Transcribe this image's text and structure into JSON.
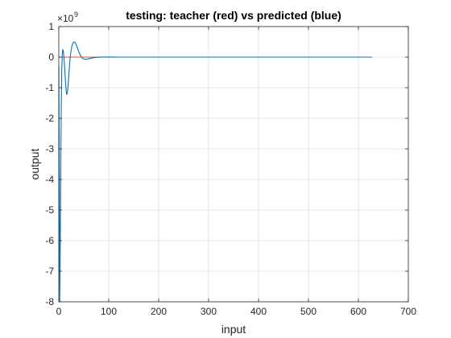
{
  "chart_data": {
    "type": "line",
    "title": "testing: teacher (red) vs predicted (blue)",
    "xlabel": "input",
    "ylabel": "output",
    "y_multiplier_text": "×10",
    "y_multiplier_exponent": "9",
    "xlim": [
      0,
      700
    ],
    "ylim": [
      -8,
      1
    ],
    "y_scale": 1000000000,
    "x_ticks": [
      0,
      100,
      200,
      300,
      400,
      500,
      600,
      700
    ],
    "y_ticks": [
      -8,
      -7,
      -6,
      -5,
      -4,
      -3,
      -2,
      -1,
      0,
      1
    ],
    "grid": true,
    "legend": "none",
    "series": [
      {
        "color": "#d95319",
        "x": [
          0,
          100,
          200,
          300,
          400,
          500,
          627
        ],
        "y": [
          0,
          0,
          0,
          0,
          0,
          0,
          0
        ]
      },
      {
        "color": "#0072bd",
        "x": [
          0,
          1,
          2,
          3,
          4,
          5,
          6,
          7,
          8,
          9,
          10,
          11,
          12,
          13,
          14,
          15,
          16,
          17,
          18,
          19,
          20,
          21,
          22,
          23,
          24,
          26,
          28,
          30,
          32,
          34,
          36,
          38,
          40,
          42,
          44,
          46,
          48,
          50,
          52,
          55,
          58,
          62,
          66,
          70,
          75,
          80,
          90,
          100,
          110,
          120,
          130,
          150,
          200,
          300,
          400,
          500,
          627
        ],
        "y": [
          -0.3,
          -4.0,
          -8.0,
          -6.0,
          -3.5,
          -1.5,
          -0.4,
          0.1,
          0.25,
          0.2,
          0.05,
          -0.15,
          -0.4,
          -0.7,
          -0.95,
          -1.15,
          -1.22,
          -1.18,
          -1.05,
          -0.85,
          -0.62,
          -0.38,
          -0.15,
          0.02,
          0.15,
          0.34,
          0.45,
          0.5,
          0.49,
          0.44,
          0.36,
          0.27,
          0.18,
          0.1,
          0.04,
          -0.01,
          -0.04,
          -0.06,
          -0.07,
          -0.07,
          -0.06,
          -0.045,
          -0.03,
          -0.018,
          -0.008,
          -0.002,
          0.002,
          0.002,
          0.001,
          0,
          0,
          0,
          0,
          0,
          0,
          0,
          0
        ]
      }
    ]
  }
}
